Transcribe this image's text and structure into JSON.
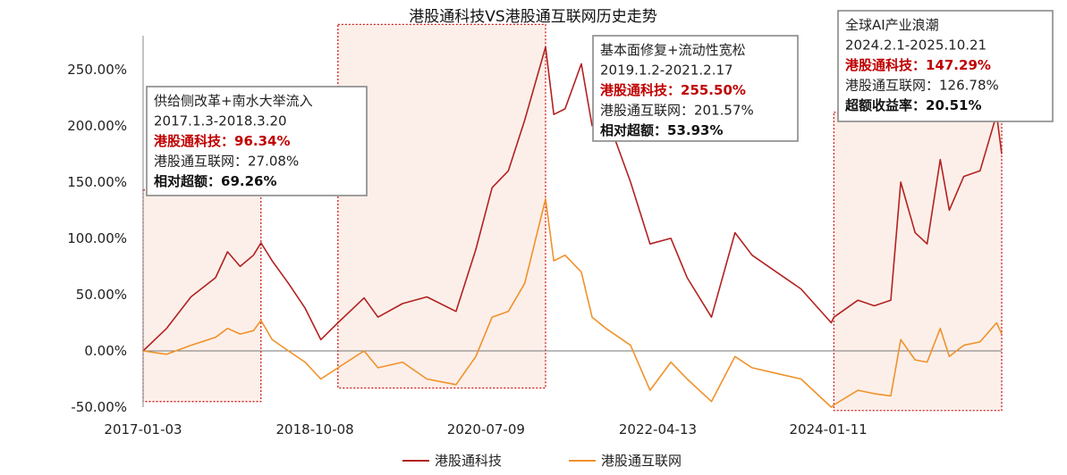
{
  "chart_data": {
    "type": "line",
    "title": "港股通科技VS港股通互联网历史走势",
    "xlabel": "",
    "ylabel": "",
    "x_tick_labels": [
      "2017-01-03",
      "2018-10-08",
      "2020-07-09",
      "2022-04-13",
      "2024-01-11"
    ],
    "x_range": [
      "2017-01-03",
      "2025-10-21"
    ],
    "y_tick_labels": [
      "-50.00%",
      "0.00%",
      "50.00%",
      "100.00%",
      "150.00%",
      "200.00%",
      "250.00%"
    ],
    "ylim": [
      -50,
      280
    ],
    "legend_position": "bottom",
    "series": [
      {
        "name": "港股通科技",
        "color": "#b22222",
        "points": [
          [
            "2017-01-03",
            0
          ],
          [
            "2017-04-01",
            20
          ],
          [
            "2017-07-01",
            48
          ],
          [
            "2017-10-01",
            65
          ],
          [
            "2017-11-15",
            88
          ],
          [
            "2018-01-01",
            75
          ],
          [
            "2018-02-20",
            85
          ],
          [
            "2018-03-20",
            96
          ],
          [
            "2018-05-01",
            80
          ],
          [
            "2018-07-01",
            60
          ],
          [
            "2018-09-01",
            38
          ],
          [
            "2018-10-30",
            10
          ],
          [
            "2019-01-02",
            25
          ],
          [
            "2019-04-10",
            47
          ],
          [
            "2019-06-01",
            30
          ],
          [
            "2019-09-01",
            42
          ],
          [
            "2019-12-01",
            48
          ],
          [
            "2020-03-19",
            35
          ],
          [
            "2020-06-01",
            90
          ],
          [
            "2020-08-01",
            145
          ],
          [
            "2020-10-01",
            160
          ],
          [
            "2020-12-01",
            205
          ],
          [
            "2021-02-17",
            270
          ],
          [
            "2021-03-20",
            210
          ],
          [
            "2021-05-01",
            215
          ],
          [
            "2021-07-01",
            255
          ],
          [
            "2021-08-10",
            200
          ],
          [
            "2021-10-01",
            210
          ],
          [
            "2022-01-01",
            150
          ],
          [
            "2022-03-15",
            95
          ],
          [
            "2022-06-01",
            100
          ],
          [
            "2022-08-01",
            65
          ],
          [
            "2022-10-31",
            30
          ],
          [
            "2023-01-27",
            105
          ],
          [
            "2023-04-01",
            85
          ],
          [
            "2023-07-01",
            70
          ],
          [
            "2023-10-01",
            55
          ],
          [
            "2024-01-22",
            25
          ],
          [
            "2024-02-01",
            30
          ],
          [
            "2024-05-01",
            45
          ],
          [
            "2024-07-01",
            40
          ],
          [
            "2024-09-01",
            45
          ],
          [
            "2024-10-08",
            150
          ],
          [
            "2024-12-01",
            105
          ],
          [
            "2025-01-15",
            95
          ],
          [
            "2025-03-05",
            170
          ],
          [
            "2025-04-08",
            125
          ],
          [
            "2025-06-01",
            155
          ],
          [
            "2025-08-01",
            160
          ],
          [
            "2025-10-02",
            210
          ],
          [
            "2025-10-21",
            175
          ]
        ]
      },
      {
        "name": "港股通互联网",
        "color": "#f0922b",
        "points": [
          [
            "2017-01-03",
            0
          ],
          [
            "2017-04-01",
            -3
          ],
          [
            "2017-07-01",
            5
          ],
          [
            "2017-10-01",
            12
          ],
          [
            "2017-11-15",
            20
          ],
          [
            "2018-01-01",
            15
          ],
          [
            "2018-02-20",
            18
          ],
          [
            "2018-03-20",
            27
          ],
          [
            "2018-05-01",
            10
          ],
          [
            "2018-07-01",
            0
          ],
          [
            "2018-09-01",
            -10
          ],
          [
            "2018-10-30",
            -25
          ],
          [
            "2019-01-02",
            -15
          ],
          [
            "2019-04-10",
            0
          ],
          [
            "2019-06-01",
            -15
          ],
          [
            "2019-09-01",
            -10
          ],
          [
            "2019-12-01",
            -25
          ],
          [
            "2020-03-19",
            -30
          ],
          [
            "2020-06-01",
            -5
          ],
          [
            "2020-08-01",
            30
          ],
          [
            "2020-10-01",
            35
          ],
          [
            "2020-12-01",
            60
          ],
          [
            "2021-02-17",
            135
          ],
          [
            "2021-03-20",
            80
          ],
          [
            "2021-05-01",
            85
          ],
          [
            "2021-07-01",
            70
          ],
          [
            "2021-08-10",
            30
          ],
          [
            "2021-10-01",
            20
          ],
          [
            "2022-01-01",
            5
          ],
          [
            "2022-03-15",
            -35
          ],
          [
            "2022-06-01",
            -10
          ],
          [
            "2022-08-01",
            -25
          ],
          [
            "2022-10-31",
            -45
          ],
          [
            "2023-01-27",
            -5
          ],
          [
            "2023-04-01",
            -15
          ],
          [
            "2023-07-01",
            -20
          ],
          [
            "2023-10-01",
            -25
          ],
          [
            "2024-01-22",
            -50
          ],
          [
            "2024-02-01",
            -48
          ],
          [
            "2024-05-01",
            -35
          ],
          [
            "2024-07-01",
            -38
          ],
          [
            "2024-09-01",
            -40
          ],
          [
            "2024-10-08",
            10
          ],
          [
            "2024-12-01",
            -8
          ],
          [
            "2025-01-15",
            -10
          ],
          [
            "2025-03-05",
            20
          ],
          [
            "2025-04-08",
            -5
          ],
          [
            "2025-06-01",
            5
          ],
          [
            "2025-08-01",
            8
          ],
          [
            "2025-10-02",
            25
          ],
          [
            "2025-10-21",
            15
          ]
        ]
      }
    ],
    "highlight_periods": [
      {
        "start": "2017-01-03",
        "end": "2018-03-20",
        "ymin": -45,
        "ymax": 143,
        "lines": [
          {
            "text": "供给侧改革+南水大举流入",
            "style": "normal"
          },
          {
            "text": "2017.1.3-2018.3.20",
            "style": "normal"
          },
          {
            "text": "港股通科技：96.34%",
            "style": "red"
          },
          {
            "text": "港股通互联网：27.08%",
            "style": "normal"
          },
          {
            "text": "相对超额：69.26%",
            "style": "bold"
          }
        ]
      },
      {
        "start": "2019-01-02",
        "end": "2021-02-17",
        "ymin": -33,
        "ymax": 290,
        "lines": [
          {
            "text": "基本面修复+流动性宽松",
            "style": "normal"
          },
          {
            "text": "2019.1.2-2021.2.17",
            "style": "normal"
          },
          {
            "text": "港股通科技：255.50%",
            "style": "red"
          },
          {
            "text": "港股通互联网：201.57%",
            "style": "normal"
          },
          {
            "text": "相对超额：53.93%",
            "style": "bold"
          }
        ]
      },
      {
        "start": "2024-02-01",
        "end": "2025-10-21",
        "ymin": -53,
        "ymax": 212,
        "lines": [
          {
            "text": "全球AI产业浪潮",
            "style": "normal"
          },
          {
            "text": "2024.2.1-2025.10.21",
            "style": "normal"
          },
          {
            "text": "港股通科技：147.29%",
            "style": "red"
          },
          {
            "text": "港股通互联网：126.78%",
            "style": "normal"
          },
          {
            "text": "超额收益率：20.51%",
            "style": "bold"
          }
        ]
      }
    ]
  }
}
